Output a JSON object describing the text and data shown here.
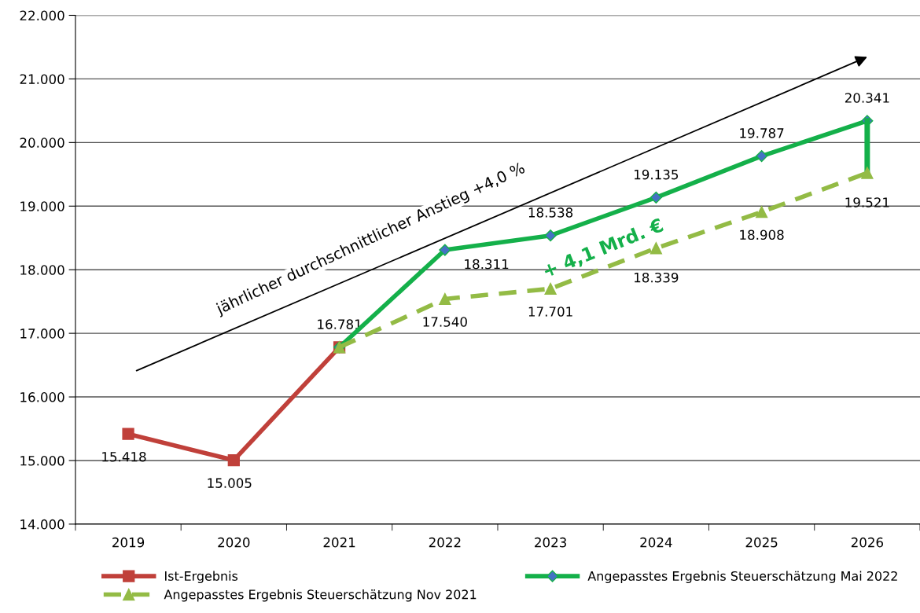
{
  "chart_data": {
    "type": "line",
    "categories": [
      "2019",
      "2020",
      "2021",
      "2022",
      "2023",
      "2024",
      "2025",
      "2026"
    ],
    "series": [
      {
        "name": "Ist-Ergebnis",
        "color": "#c0403a",
        "marker": "square",
        "line_style": "solid",
        "values": [
          15418,
          15005,
          16781,
          null,
          null,
          null,
          null,
          null
        ],
        "value_labels": [
          "15.418",
          "15.005",
          null,
          null,
          null,
          null,
          null,
          null
        ]
      },
      {
        "name": "Angepasstes Ergebnis Steuerschätzung Mai 2022",
        "color": "#14b04a",
        "marker": "diamond",
        "line_style": "solid",
        "values": [
          null,
          null,
          16781,
          18311,
          18538,
          19135,
          19787,
          20341
        ],
        "value_labels": [
          null,
          null,
          "16.781",
          "18.311",
          "18.538",
          "19.135",
          "19.787",
          "20.341"
        ]
      },
      {
        "name": "Angepasstes Ergebnis Steuerschätzung Nov 2021",
        "color": "#93bb45",
        "marker": "triangle",
        "line_style": "dashed",
        "values": [
          null,
          null,
          16781,
          17540,
          17701,
          18339,
          18908,
          19521
        ],
        "value_labels": [
          null,
          null,
          null,
          "17.540",
          "17.701",
          "18.339",
          "18.908",
          "19.521"
        ]
      }
    ],
    "ylim": [
      14000,
      22000
    ],
    "yticks": [
      {
        "value": 14000,
        "label": "14.000"
      },
      {
        "value": 15000,
        "label": "15.000"
      },
      {
        "value": 16000,
        "label": "16.000"
      },
      {
        "value": 17000,
        "label": "17.000"
      },
      {
        "value": 18000,
        "label": "18.000"
      },
      {
        "value": 19000,
        "label": "19.000"
      },
      {
        "value": 20000,
        "label": "20.000"
      },
      {
        "value": 21000,
        "label": "21.000"
      },
      {
        "value": 22000,
        "label": "22.000"
      }
    ],
    "grid": "y",
    "legend": "bottom",
    "annotations": [
      "jährlicher durchschnittlicher Anstieg +4,0 %",
      "+ 4,1 Mrd. €"
    ]
  }
}
